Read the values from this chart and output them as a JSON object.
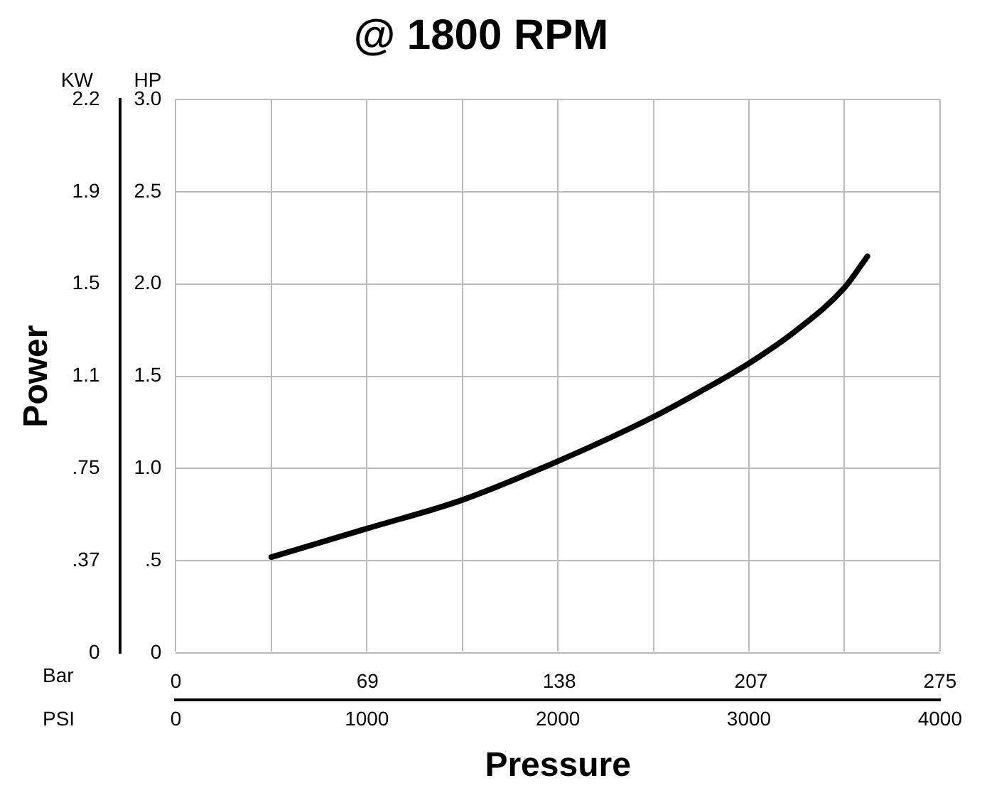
{
  "chart_data": {
    "type": "line",
    "title": "@ 1800 RPM",
    "xlabel": "Pressure",
    "ylabel": "Power",
    "annotations": [
      "KW",
      "HP",
      "Bar",
      "PSI"
    ],
    "x": [
      500,
      1000,
      1500,
      2000,
      2500,
      2750,
      3000,
      3250,
      3500,
      3620
    ],
    "series": [
      {
        "color": "#000000",
        "axis": "y2",
        "values": [
          0.52,
          0.675,
          0.83,
          1.04,
          1.28,
          1.42,
          1.57,
          1.75,
          1.98,
          2.15
        ]
      }
    ],
    "xlim": [
      0,
      4000
    ],
    "xticks": [
      0,
      {
        "value": 500,
        "label": null
      },
      1000,
      {
        "value": 1500,
        "label": null
      },
      2000,
      {
        "value": 2500,
        "label": null
      },
      3000,
      {
        "value": 3500,
        "label": null
      },
      4000
    ],
    "x2lim": [
      0,
      275
    ],
    "x2ticks": [
      0,
      69,
      138,
      207,
      275
    ],
    "ylim": [
      0,
      2.238
    ],
    "yticks": [
      0,
      {
        "value": 0.373,
        "label": ".37"
      },
      {
        "value": 0.746,
        "label": ".75"
      },
      {
        "value": 1.119,
        "label": "1.1"
      },
      {
        "value": 1.492,
        "label": "1.5"
      },
      {
        "value": 1.865,
        "label": "1.9"
      },
      {
        "value": 2.238,
        "label": "2.2"
      }
    ],
    "y2lim": [
      0,
      3
    ],
    "y2ticks": [
      {
        "value": 0,
        "label": "0"
      },
      {
        "value": 0.5,
        "label": ".5"
      },
      {
        "value": 1,
        "label": "1.0"
      },
      {
        "value": 1.5,
        "label": "1.5"
      },
      {
        "value": 2,
        "label": "2.0"
      },
      {
        "value": 2.5,
        "label": "2.5"
      },
      {
        "value": 3,
        "label": "3.0"
      }
    ],
    "grid": true,
    "marker": "none",
    "line_style": "solid",
    "legend": false
  }
}
